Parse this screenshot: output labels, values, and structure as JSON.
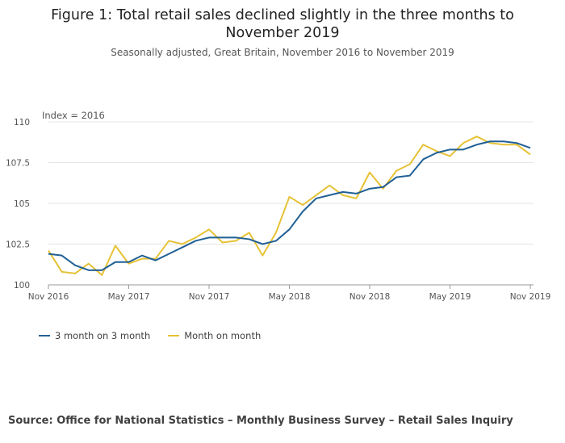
{
  "chart_data": {
    "type": "line",
    "title": "Figure 1: Total retail sales declined slightly in the three months to November 2019",
    "subtitle": "Seasonally adjusted, Great Britain, November 2016 to November 2019",
    "ylabel": "Index = 2016",
    "ylim": [
      100,
      110
    ],
    "yticks": [
      100,
      102.5,
      105,
      107.5,
      110
    ],
    "ytick_labels": [
      "100",
      "102.5",
      "105",
      "107.5",
      "110"
    ],
    "xtick_labels": [
      "Nov 2016",
      "May 2017",
      "Nov 2017",
      "May 2018",
      "Nov 2018",
      "May 2019",
      "Nov 2019"
    ],
    "xtick_positions": [
      0,
      6,
      12,
      18,
      24,
      30,
      36
    ],
    "x_count": 37,
    "series": [
      {
        "name": "3 month on 3 month",
        "color": "#206095",
        "values": [
          101.9,
          101.8,
          101.2,
          100.9,
          100.9,
          101.4,
          101.4,
          101.8,
          101.5,
          101.9,
          102.3,
          102.7,
          102.9,
          102.9,
          102.9,
          102.8,
          102.5,
          102.7,
          103.4,
          104.5,
          105.3,
          105.5,
          105.7,
          105.6,
          105.9,
          106.0,
          106.6,
          106.7,
          107.7,
          108.1,
          108.3,
          108.3,
          108.6,
          108.8,
          108.8,
          108.7,
          108.4
        ]
      },
      {
        "name": "Month on month",
        "color": "#e6c236",
        "values": [
          102.1,
          100.8,
          100.7,
          101.3,
          100.6,
          102.4,
          101.3,
          101.6,
          101.6,
          102.7,
          102.5,
          102.9,
          103.4,
          102.6,
          102.7,
          103.2,
          101.8,
          103.2,
          105.4,
          104.9,
          105.5,
          106.1,
          105.5,
          105.3,
          106.9,
          105.9,
          107.0,
          107.4,
          108.6,
          108.2,
          107.9,
          108.7,
          109.1,
          108.7,
          108.6,
          108.6,
          108.0
        ]
      }
    ]
  },
  "source": "Source: Office for National Statistics – Monthly Business Survey – Retail Sales Inquiry"
}
